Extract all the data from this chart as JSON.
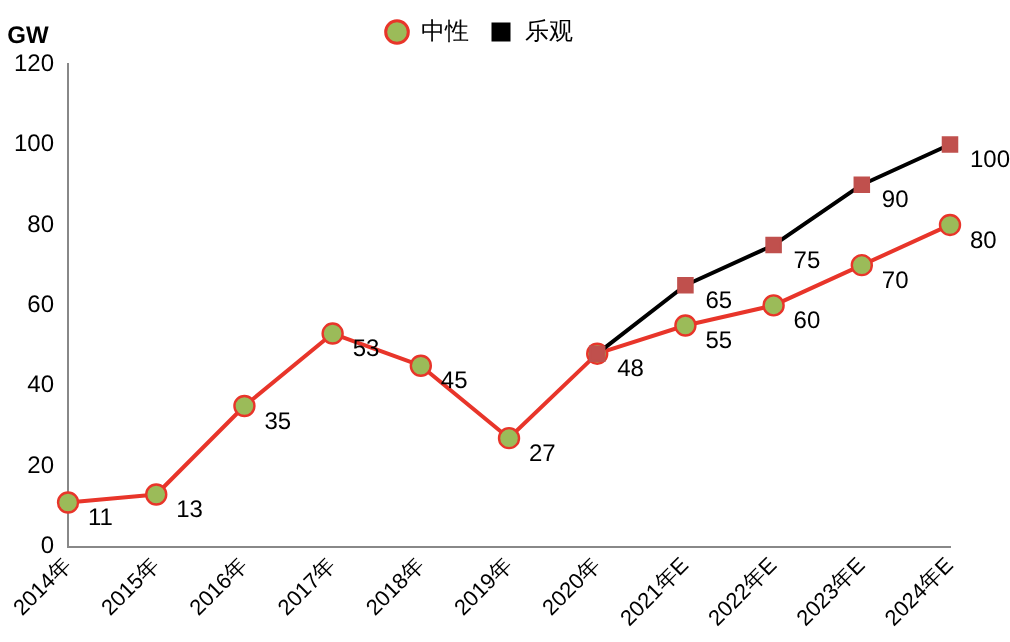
{
  "chart_data": {
    "type": "line",
    "ylabel": "GW",
    "categories": [
      "2014年",
      "2015年",
      "2016年",
      "2017年",
      "2018年",
      "2019年",
      "2020年",
      "2021年E",
      "2022年E",
      "2023年E",
      "2024年E"
    ],
    "series": [
      {
        "name": "中性",
        "color": "#e8352a",
        "colors": [
          "#9bbb59",
          "#9bbb59",
          "#9bbb59",
          "#9bbb59",
          "#9bbb59",
          "#9bbb59",
          "#9bbb59",
          "#9bbb59",
          "#9bbb59",
          "#9bbb59",
          "#9bbb59"
        ],
        "marker": "circle",
        "values": [
          11,
          13,
          35,
          53,
          45,
          27,
          48,
          55,
          60,
          70,
          80
        ],
        "value_labels": [
          "11",
          "13",
          "35",
          "53",
          "45",
          "27",
          "48",
          "55",
          "60",
          "70",
          "80"
        ]
      },
      {
        "name": "乐观",
        "color": "#000000",
        "colors": [
          null,
          null,
          null,
          null,
          null,
          null,
          "#c0504d",
          "#c0504d",
          "#c0504d",
          "#c0504d",
          "#c0504d"
        ],
        "marker": "square",
        "values": [
          null,
          null,
          null,
          null,
          null,
          null,
          48,
          65,
          75,
          90,
          100
        ],
        "value_labels": [
          null,
          null,
          null,
          null,
          null,
          null,
          null,
          "65",
          "75",
          "90",
          "100"
        ]
      }
    ],
    "ylim": [
      0,
      120
    ],
    "yticks": [
      0,
      20,
      40,
      60,
      80,
      100,
      120
    ],
    "grid": false,
    "legend": "top",
    "line_style": "solid"
  }
}
